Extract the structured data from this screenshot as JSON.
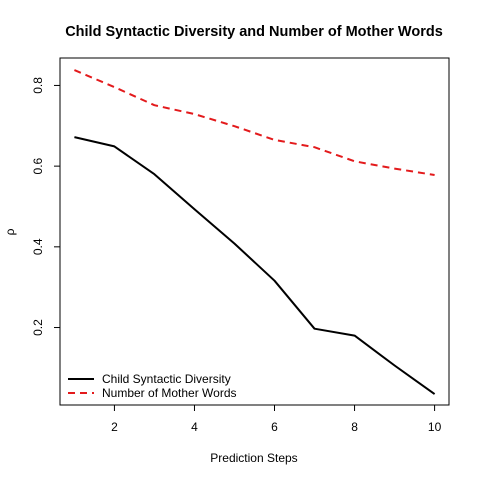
{
  "chart_data": {
    "type": "line",
    "title": "Child Syntactic Diversity and Number of Mother Words",
    "xlabel": "Prediction Steps",
    "ylabel": "ρ",
    "x": [
      1,
      2,
      3,
      4,
      5,
      6,
      7,
      8,
      9,
      10
    ],
    "xlim": [
      0.64,
      10.36
    ],
    "ylim": [
      0.008,
      0.868
    ],
    "xticks": [
      2,
      4,
      6,
      8,
      10
    ],
    "yticks": [
      0.2,
      0.4,
      0.6,
      0.8
    ],
    "grid": false,
    "legend_position": "bottom-left",
    "series": [
      {
        "name": "Child Syntactic Diversity",
        "color": "#000000",
        "dash": "solid",
        "values": [
          0.672,
          0.649,
          0.58,
          0.493,
          0.408,
          0.316,
          0.197,
          0.18,
          0.106,
          0.035
        ]
      },
      {
        "name": "Number of Mother Words",
        "color": "#e31a1c",
        "dash": "dashed",
        "values": [
          0.838,
          0.796,
          0.751,
          0.729,
          0.699,
          0.665,
          0.647,
          0.612,
          0.594,
          0.578
        ]
      }
    ]
  }
}
